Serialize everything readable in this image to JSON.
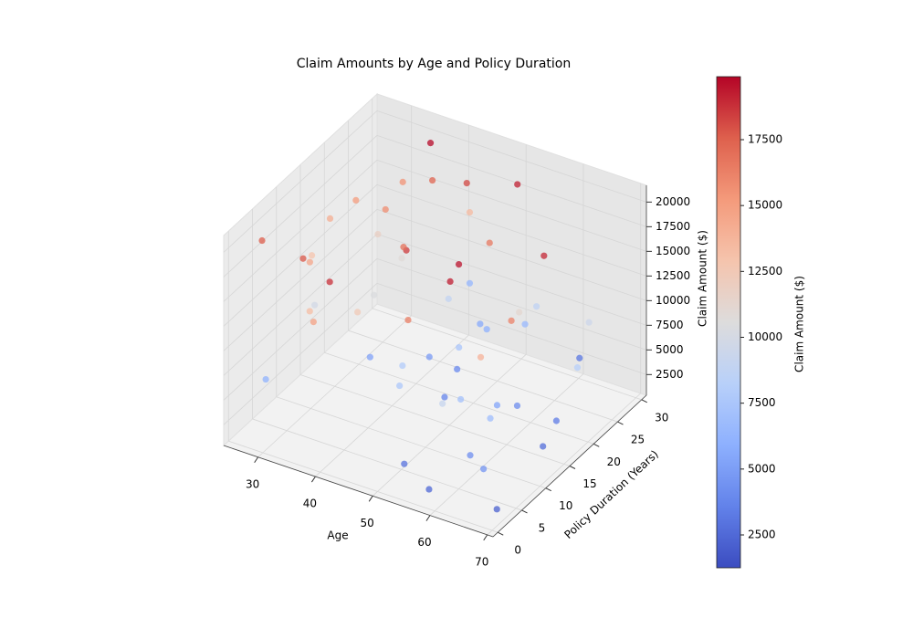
{
  "chart_data": {
    "type": "scatter3d",
    "title": "Claim Amounts by Age and Policy Duration",
    "x_label": "Age",
    "y_label": "Policy Duration (Years)",
    "z_label": "Claim Amount ($)",
    "colorbar_label": "Claim Amount ($)",
    "colormap": "coolwarm",
    "x": [
      45,
      62,
      33,
      51,
      28,
      67,
      39,
      56,
      42,
      70,
      25,
      48,
      60,
      35,
      53,
      30,
      65,
      44,
      58,
      37,
      50,
      27,
      63,
      41,
      55,
      69,
      32,
      47,
      59,
      36,
      52,
      29,
      66,
      43,
      57,
      38,
      61,
      26,
      49,
      64,
      34,
      54,
      40,
      68,
      31,
      46,
      58,
      24,
      61,
      44,
      37,
      52,
      66,
      29,
      48,
      56,
      41,
      63,
      35,
      50
    ],
    "y": [
      12,
      5,
      22,
      28,
      3,
      17,
      9,
      26,
      15,
      1,
      20,
      7,
      13,
      29,
      2,
      24,
      10,
      18,
      4,
      27,
      14,
      23,
      8,
      30,
      11,
      19,
      6,
      25,
      0,
      16,
      21,
      12,
      3,
      27,
      9,
      1,
      29,
      15,
      24,
      18,
      5,
      26,
      2,
      13,
      28,
      10,
      20,
      7,
      16,
      22,
      14,
      4,
      25,
      11,
      19,
      8,
      30,
      6,
      23,
      17
    ],
    "z": [
      18500,
      4200,
      15800,
      19200,
      6100,
      3300,
      12400,
      8700,
      16900,
      2100,
      14200,
      7600,
      5300,
      19800,
      2900,
      11800,
      16200,
      4800,
      9100,
      17300,
      3700,
      15100,
      6800,
      13500,
      19500,
      8200,
      17800,
      5600,
      2400,
      10400,
      16600,
      9800,
      4500,
      18200,
      7100,
      14800,
      3100,
      12900,
      5900,
      19000,
      13300,
      6500,
      18800,
      2700,
      15500,
      7900,
      11200,
      17600,
      4100,
      8900,
      5200,
      16400,
      9500,
      14600,
      3900,
      19300,
      6300,
      13900,
      10800,
      7400
    ],
    "xlim": [
      24,
      71
    ],
    "ylim": [
      -1,
      31
    ],
    "zlim": [
      400,
      21700
    ],
    "clim": [
      1253,
      19890
    ],
    "xticks": [
      30,
      40,
      50,
      60,
      70
    ],
    "yticks": [
      0,
      5,
      10,
      15,
      20,
      25,
      30
    ],
    "zticks": [
      2500,
      5000,
      7500,
      10000,
      12500,
      15000,
      17500,
      20000
    ],
    "colorbar_ticks": [
      2500,
      5000,
      7500,
      10000,
      12500,
      15000,
      17500
    ],
    "grid": true
  }
}
